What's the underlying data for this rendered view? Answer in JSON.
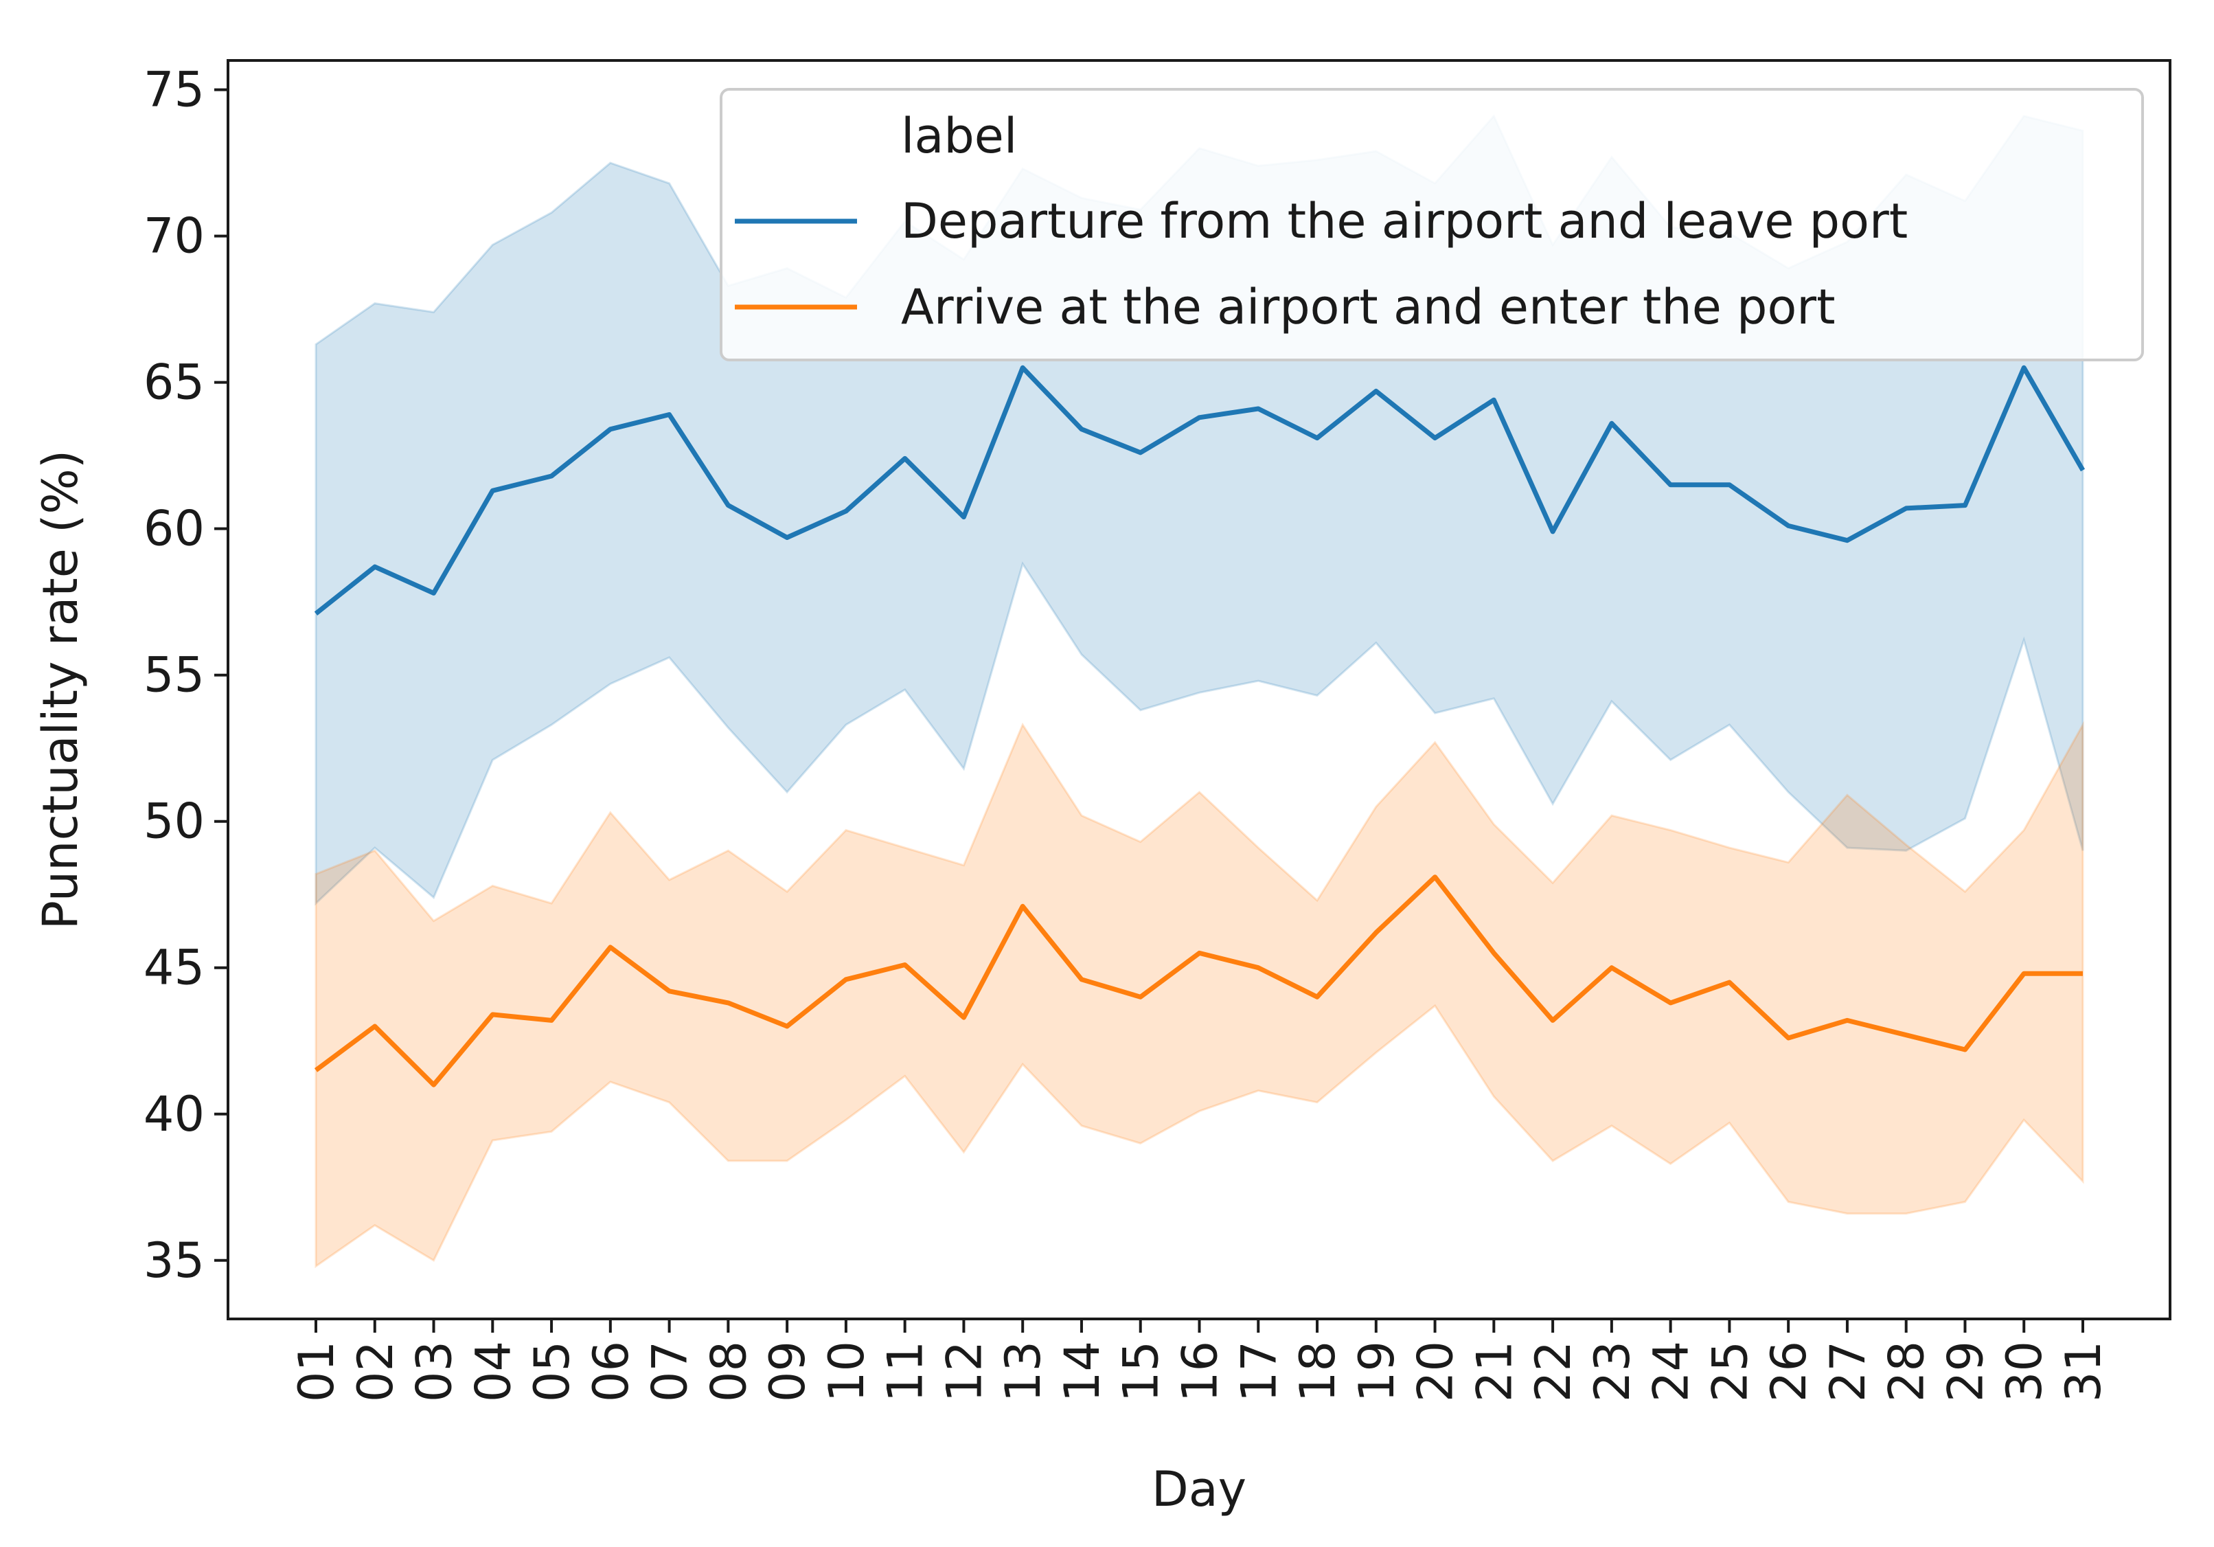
{
  "chart_data": {
    "type": "line",
    "xlabel": "Day",
    "ylabel": "Punctuality rate (%)",
    "ylim": [
      33,
      76
    ],
    "yticks": [
      35,
      40,
      45,
      50,
      55,
      60,
      65,
      70,
      75
    ],
    "categories": [
      "01",
      "02",
      "03",
      "04",
      "05",
      "06",
      "07",
      "08",
      "09",
      "10",
      "11",
      "12",
      "13",
      "14",
      "15",
      "16",
      "17",
      "18",
      "19",
      "20",
      "21",
      "22",
      "23",
      "24",
      "25",
      "26",
      "27",
      "28",
      "29",
      "30",
      "31"
    ],
    "grid": false,
    "legend": {
      "title": "label",
      "placement": "top-right"
    },
    "series": [
      {
        "name": "Departure from the airport and leave port",
        "color": "#1f77b4",
        "values": [
          57.1,
          58.7,
          57.8,
          61.3,
          61.8,
          63.4,
          63.9,
          60.8,
          59.7,
          60.6,
          62.4,
          60.4,
          65.5,
          63.4,
          62.6,
          63.8,
          64.1,
          63.1,
          64.7,
          63.1,
          64.4,
          59.9,
          63.6,
          61.5,
          61.5,
          60.1,
          59.6,
          60.7,
          60.8,
          65.5,
          62.0
        ],
        "lower": [
          47.2,
          49.1,
          47.4,
          52.1,
          53.3,
          54.7,
          55.6,
          53.2,
          51.0,
          53.3,
          54.5,
          51.8,
          58.8,
          55.7,
          53.8,
          54.4,
          54.8,
          54.3,
          56.1,
          53.7,
          54.2,
          50.6,
          54.1,
          52.1,
          53.3,
          51.0,
          49.1,
          49.0,
          50.1,
          56.2,
          49.0
        ],
        "upper": [
          66.3,
          67.7,
          67.4,
          69.7,
          70.8,
          72.5,
          71.8,
          68.3,
          68.9,
          67.9,
          70.5,
          69.2,
          72.3,
          71.3,
          70.9,
          73.0,
          72.4,
          72.6,
          72.9,
          71.8,
          74.1,
          69.7,
          72.7,
          70.3,
          70.1,
          68.9,
          69.8,
          72.1,
          71.2,
          74.1,
          73.6
        ]
      },
      {
        "name": "Arrive at the airport and enter the port",
        "color": "#ff7f0e",
        "values": [
          41.5,
          43.0,
          41.0,
          43.4,
          43.2,
          45.7,
          44.2,
          43.8,
          43.0,
          44.6,
          45.1,
          43.3,
          47.1,
          44.6,
          44.0,
          45.5,
          45.0,
          44.0,
          46.2,
          48.1,
          45.5,
          43.2,
          45.0,
          43.8,
          44.5,
          42.6,
          43.2,
          42.7,
          42.2,
          44.8,
          44.8
        ],
        "lower": [
          34.8,
          36.2,
          35.0,
          39.1,
          39.4,
          41.1,
          40.4,
          38.4,
          38.4,
          39.8,
          41.3,
          38.7,
          41.7,
          39.6,
          39.0,
          40.1,
          40.8,
          40.4,
          42.1,
          43.7,
          40.6,
          38.4,
          39.6,
          38.3,
          39.7,
          37.0,
          36.6,
          36.6,
          37.0,
          39.8,
          37.7
        ],
        "upper": [
          48.2,
          49.0,
          46.6,
          47.8,
          47.2,
          50.3,
          48.0,
          49.0,
          47.6,
          49.7,
          49.1,
          48.5,
          53.3,
          50.2,
          49.3,
          51.0,
          49.1,
          47.3,
          50.5,
          52.7,
          49.9,
          47.9,
          50.2,
          49.7,
          49.1,
          48.6,
          50.9,
          49.2,
          47.6,
          49.7,
          53.3
        ]
      }
    ]
  }
}
